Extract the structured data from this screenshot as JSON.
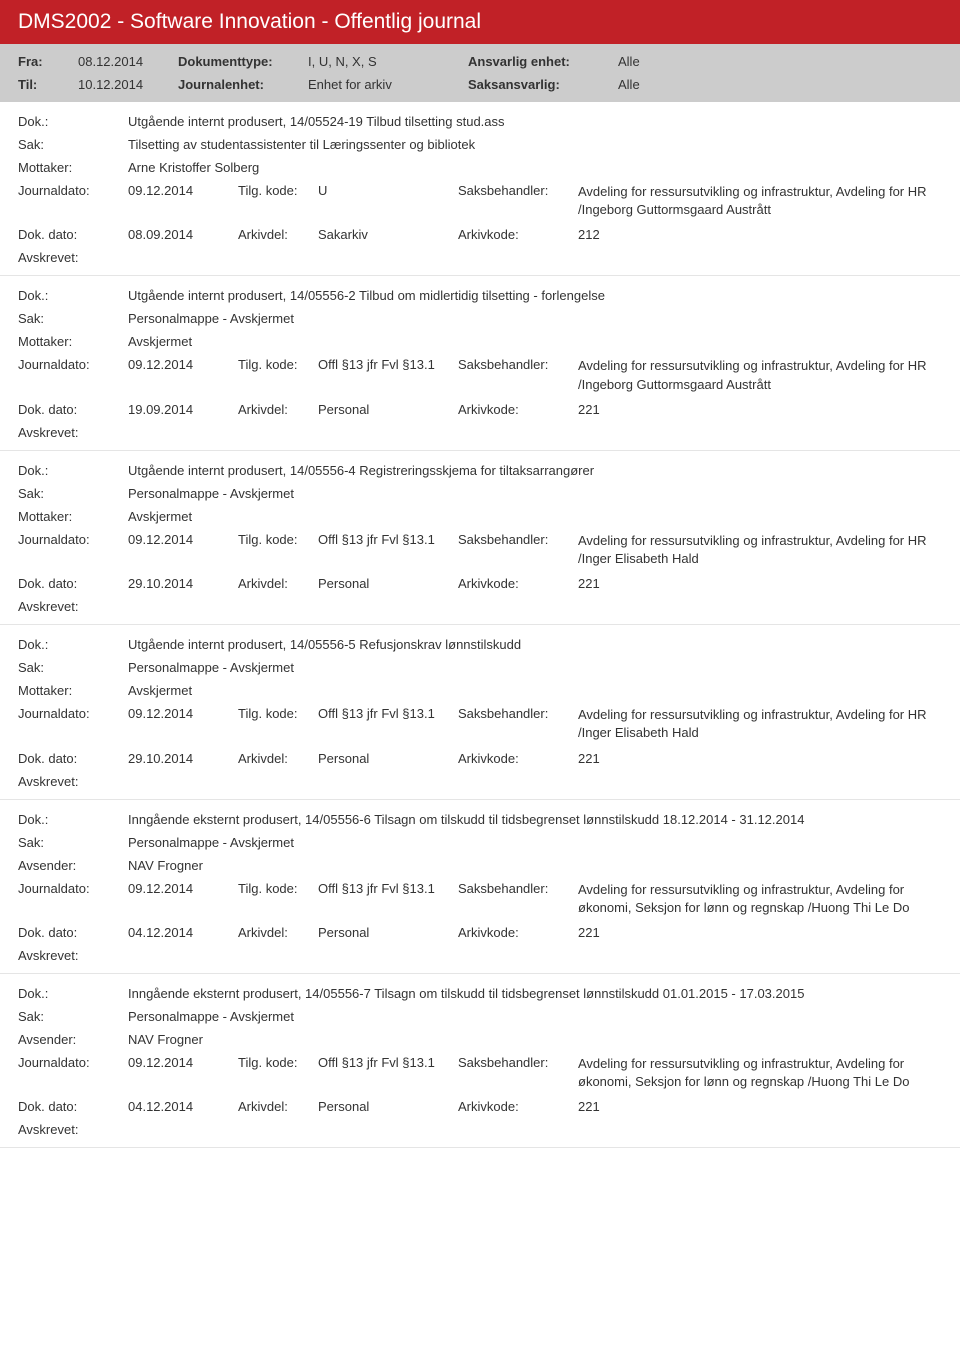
{
  "header": {
    "title": "DMS2002 - Software Innovation - Offentlig journal"
  },
  "filter": {
    "fra_label": "Fra:",
    "fra_value": "08.12.2014",
    "til_label": "Til:",
    "til_value": "10.12.2014",
    "dokumenttype_label": "Dokumenttype:",
    "dokumenttype_value": "I, U, N, X, S",
    "journalenhet_label": "Journalenhet:",
    "journalenhet_value": "Enhet for arkiv",
    "ansvarlig_label": "Ansvarlig enhet:",
    "ansvarlig_value": "Alle",
    "saksansvarlig_label": "Saksansvarlig:",
    "saksansvarlig_value": "Alle"
  },
  "labels": {
    "dok": "Dok.:",
    "sak": "Sak:",
    "mottaker": "Mottaker:",
    "avsender": "Avsender:",
    "journaldato": "Journaldato:",
    "tilg_kode": "Tilg. kode:",
    "saksbehandler": "Saksbehandler:",
    "dok_dato": "Dok. dato:",
    "arkivdel": "Arkivdel:",
    "arkivkode": "Arkivkode:",
    "avskrevet": "Avskrevet:"
  },
  "entries": [
    {
      "dok": "Utgående internt produsert, 14/05524-19 Tilbud tilsetting stud.ass",
      "sak": "Tilsetting av studentassistenter til Læringssenter og bibliotek",
      "party_label": "Mottaker:",
      "party_value": "Arne Kristoffer Solberg",
      "journaldato": "09.12.2014",
      "tilg_kode": "U",
      "saksbehandler": "Avdeling for ressursutvikling og infrastruktur, Avdeling for HR /Ingeborg Guttormsgaard Austrått",
      "dok_dato": "08.09.2014",
      "arkivdel": "Sakarkiv",
      "arkivkode": "212"
    },
    {
      "dok": "Utgående internt produsert, 14/05556-2 Tilbud om midlertidig tilsetting - forlengelse",
      "sak": "Personalmappe - Avskjermet",
      "party_label": "Mottaker:",
      "party_value": "Avskjermet",
      "journaldato": "09.12.2014",
      "tilg_kode": "Offl §13 jfr Fvl §13.1",
      "saksbehandler": "Avdeling for ressursutvikling og infrastruktur, Avdeling for HR /Ingeborg Guttormsgaard Austrått",
      "dok_dato": "19.09.2014",
      "arkivdel": "Personal",
      "arkivkode": "221"
    },
    {
      "dok": "Utgående internt produsert, 14/05556-4 Registreringsskjema for tiltaksarrangører",
      "sak": "Personalmappe - Avskjermet",
      "party_label": "Mottaker:",
      "party_value": "Avskjermet",
      "journaldato": "09.12.2014",
      "tilg_kode": "Offl §13 jfr Fvl §13.1",
      "saksbehandler": "Avdeling for ressursutvikling og infrastruktur, Avdeling for HR /Inger Elisabeth Hald",
      "dok_dato": "29.10.2014",
      "arkivdel": "Personal",
      "arkivkode": "221"
    },
    {
      "dok": "Utgående internt produsert, 14/05556-5 Refusjonskrav lønnstilskudd",
      "sak": "Personalmappe - Avskjermet",
      "party_label": "Mottaker:",
      "party_value": "Avskjermet",
      "journaldato": "09.12.2014",
      "tilg_kode": "Offl §13 jfr Fvl §13.1",
      "saksbehandler": "Avdeling for ressursutvikling og infrastruktur, Avdeling for HR /Inger Elisabeth Hald",
      "dok_dato": "29.10.2014",
      "arkivdel": "Personal",
      "arkivkode": "221"
    },
    {
      "dok": "Inngående eksternt produsert, 14/05556-6 Tilsagn om tilskudd til tidsbegrenset lønnstilskudd 18.12.2014 - 31.12.2014",
      "sak": "Personalmappe - Avskjermet",
      "party_label": "Avsender:",
      "party_value": "NAV Frogner",
      "journaldato": "09.12.2014",
      "tilg_kode": "Offl §13 jfr Fvl §13.1",
      "saksbehandler": "Avdeling for ressursutvikling og infrastruktur, Avdeling for økonomi, Seksjon for lønn og regnskap /Huong Thi Le Do",
      "dok_dato": "04.12.2014",
      "arkivdel": "Personal",
      "arkivkode": "221"
    },
    {
      "dok": "Inngående eksternt produsert, 14/05556-7 Tilsagn om tilskudd til tidsbegrenset lønnstilskudd 01.01.2015 - 17.03.2015",
      "sak": "Personalmappe - Avskjermet",
      "party_label": "Avsender:",
      "party_value": "NAV Frogner",
      "journaldato": "09.12.2014",
      "tilg_kode": "Offl §13 jfr Fvl §13.1",
      "saksbehandler": "Avdeling for ressursutvikling og infrastruktur, Avdeling for økonomi, Seksjon for lønn og regnskap /Huong Thi Le Do",
      "dok_dato": "04.12.2014",
      "arkivdel": "Personal",
      "arkivkode": "221"
    }
  ]
}
